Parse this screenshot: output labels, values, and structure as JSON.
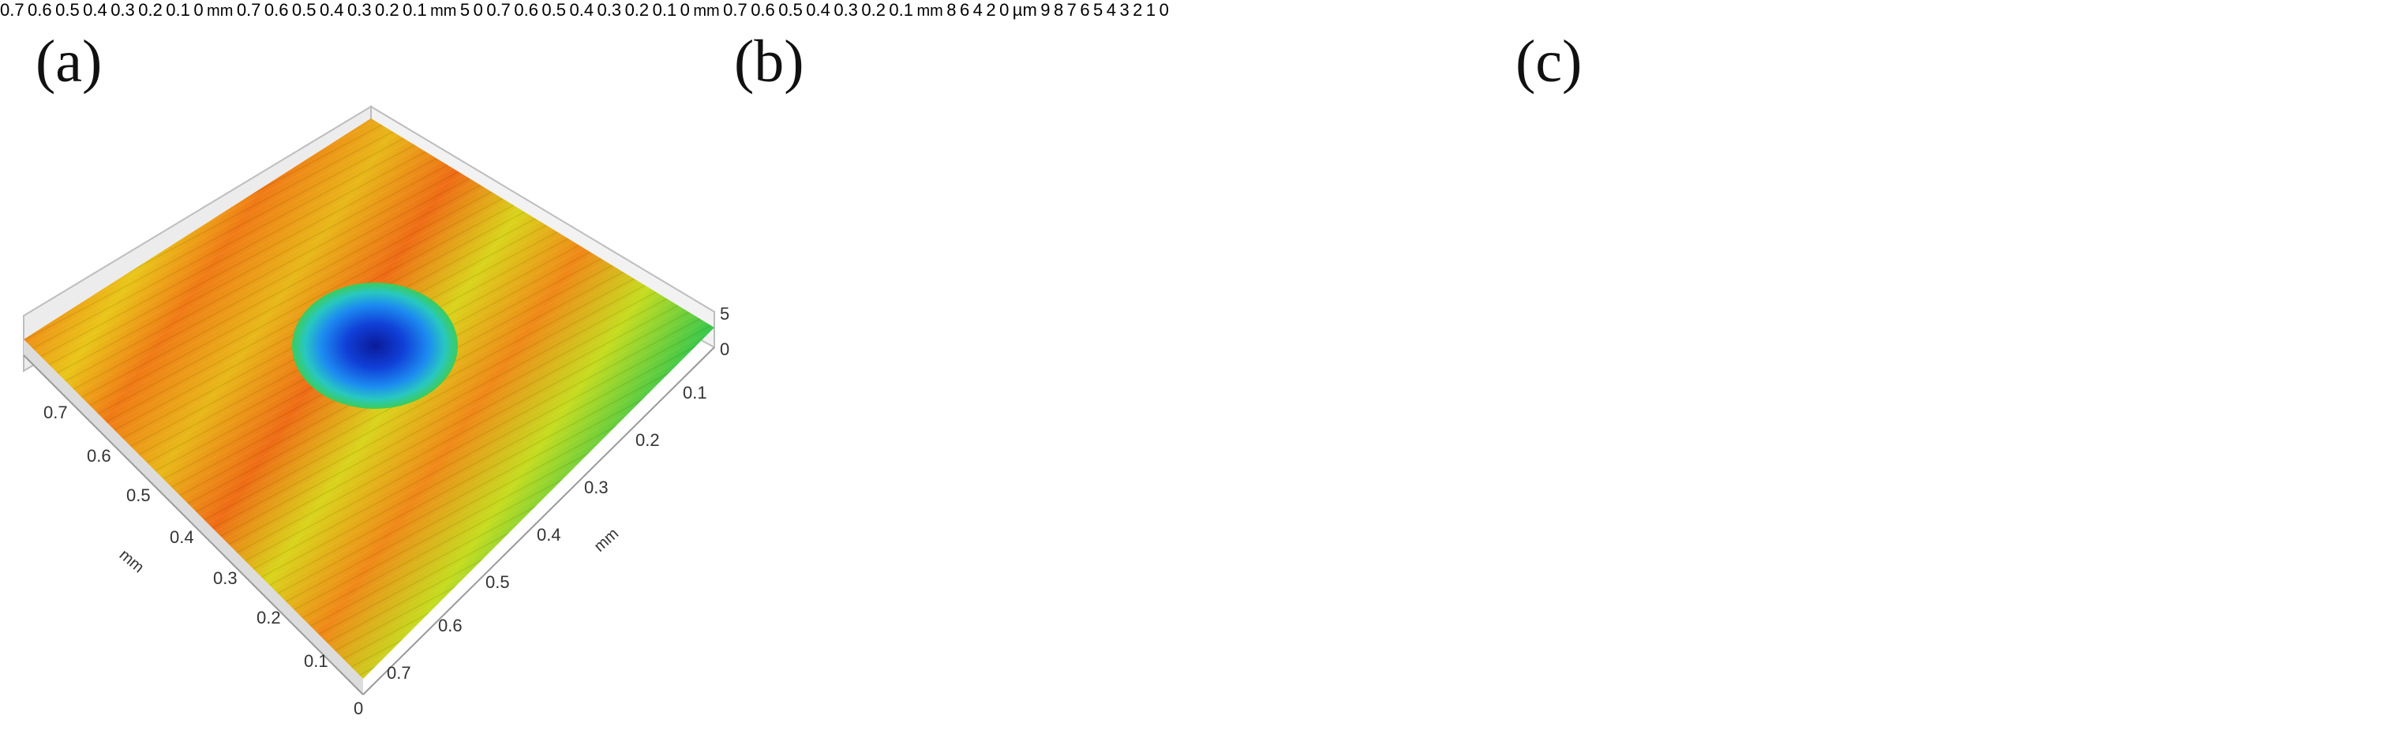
{
  "panels": [
    {
      "label": "(a)",
      "tick_left": [
        "0.7",
        "0.6",
        "0.5",
        "0.4",
        "0.3",
        "0.2",
        "0.1",
        "0"
      ],
      "tick_right": [
        "0.7",
        "0.6",
        "0.5",
        "0.4",
        "0.3",
        "0.2",
        "0.1"
      ],
      "axis_unit": "mm",
      "z_ticks": [
        "5",
        "0"
      ]
    },
    {
      "label": "(b)",
      "tick_left": [
        "0.7",
        "0.6",
        "0.5",
        "0.4",
        "0.3",
        "0.2",
        "0.1",
        "0"
      ],
      "tick_right": [
        "0.7",
        "0.6",
        "0.5",
        "0.4",
        "0.3",
        "0.2",
        "0.1"
      ],
      "axis_unit": "mm",
      "z_ticks": [
        "5",
        "0"
      ]
    },
    {
      "label": "(c)",
      "tick_left": [
        "0.7",
        "0.6",
        "0.5",
        "0.4",
        "0.3",
        "0.2",
        "0.1",
        "0"
      ],
      "tick_right": [
        "0.7",
        "0.6",
        "0.5",
        "0.4",
        "0.3",
        "0.2",
        "0.1"
      ],
      "axis_unit": "mm",
      "z_ticks": [
        "8",
        "6",
        "4",
        "2",
        "0"
      ]
    }
  ],
  "colorbar": {
    "unit": "µm",
    "ticks": [
      "9",
      "8",
      "7",
      "6",
      "5",
      "4",
      "3",
      "2",
      "1",
      "0"
    ],
    "colors": [
      "#000000",
      "#0a1aa0",
      "#1a6cff",
      "#20c8d8",
      "#2ecc40",
      "#b4e01e",
      "#f2dc14",
      "#f58a14",
      "#e8341c",
      "#f0b4b4",
      "#ffffff"
    ]
  }
}
